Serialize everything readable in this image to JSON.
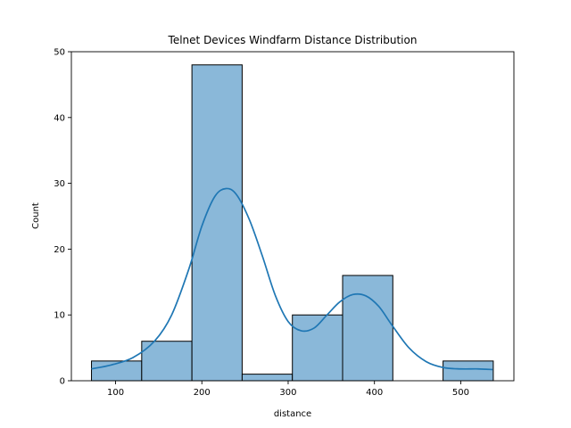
{
  "chart_data": {
    "type": "bar",
    "title": "Telnet Devices Windfarm Distance Distribution",
    "xlabel": "distance",
    "ylabel": "Count",
    "xlim": [
      48.8,
      561.6
    ],
    "ylim": [
      0,
      50
    ],
    "xticks": [
      100,
      200,
      300,
      400,
      500
    ],
    "yticks": [
      0,
      10,
      20,
      30,
      40,
      50
    ],
    "bins": [
      {
        "x0": 72.1,
        "x1": 130.3,
        "count": 3
      },
      {
        "x0": 130.3,
        "x1": 188.5,
        "count": 6
      },
      {
        "x0": 188.5,
        "x1": 246.7,
        "count": 48
      },
      {
        "x0": 246.7,
        "x1": 304.9,
        "count": 1
      },
      {
        "x0": 304.9,
        "x1": 363.1,
        "count": 10
      },
      {
        "x0": 363.1,
        "x1": 421.3,
        "count": 16
      },
      {
        "x0": 421.3,
        "x1": 479.5,
        "count": 0
      },
      {
        "x0": 479.5,
        "x1": 537.7,
        "count": 3
      }
    ],
    "kde": {
      "x": [
        72,
        95,
        120,
        145,
        165,
        185,
        200,
        215,
        228,
        240,
        255,
        270,
        285,
        300,
        315,
        330,
        345,
        360,
        375,
        390,
        405,
        420,
        440,
        460,
        480,
        500,
        520,
        537
      ],
      "y": [
        1.8,
        2.4,
        3.5,
        6.0,
        10.0,
        17.0,
        23.5,
        28.0,
        29.2,
        28.3,
        24.5,
        19.0,
        13.0,
        9.0,
        7.6,
        8.0,
        10.0,
        12.0,
        13.1,
        12.9,
        11.3,
        8.5,
        5.0,
        2.9,
        2.0,
        1.8,
        1.8,
        1.7
      ]
    },
    "colors": {
      "bar_fill": "#8ab8d9",
      "bar_edge": "#000000",
      "kde_line": "#1f77b4"
    },
    "grid": false,
    "legend": "none"
  }
}
